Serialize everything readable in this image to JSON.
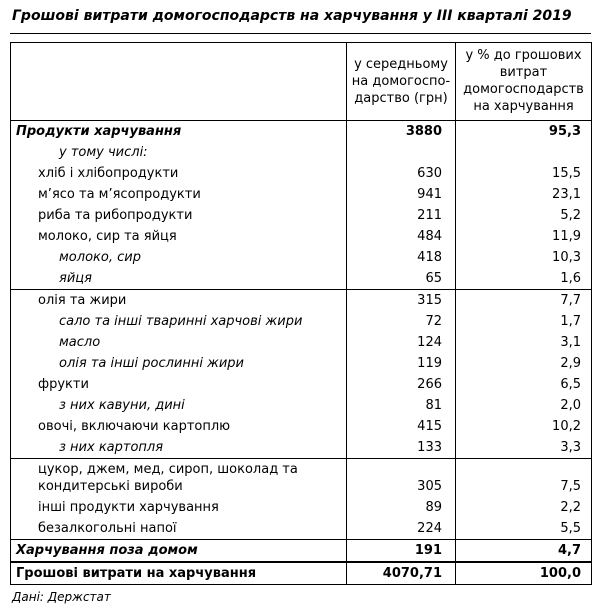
{
  "title": "Грошові витрати домогосподарств на харчування у III кварталі 2019",
  "source": "Дані: Держстат",
  "chart_data": {
    "type": "table",
    "title": "Грошові витрати домогосподарств на харчування у III кварталі 2019",
    "columns": {
      "col1": "",
      "col2": "у середньому\nна домогоспо-\nдарство (грн)",
      "col3": "у % до грошових\nвитрат\nдомогосподарств\nна харчування"
    },
    "rows": [
      {
        "label": "Продукти харчування",
        "avg_uah": "3880",
        "pct": "95,3"
      },
      {
        "label": "у тому числі:",
        "avg_uah": "",
        "pct": ""
      },
      {
        "label": "хліб і хлібопродукти",
        "avg_uah": "630",
        "pct": "15,5"
      },
      {
        "label": "м’ясо та м’ясопродукти",
        "avg_uah": "941",
        "pct": "23,1"
      },
      {
        "label": "риба та рибопродукти",
        "avg_uah": "211",
        "pct": "5,2"
      },
      {
        "label": "молоко, сир та яйця",
        "avg_uah": "484",
        "pct": "11,9"
      },
      {
        "label": "молоко, сир",
        "avg_uah": "418",
        "pct": "10,3"
      },
      {
        "label": "яйця",
        "avg_uah": "65",
        "pct": "1,6"
      },
      {
        "label": "олія та жири",
        "avg_uah": "315",
        "pct": "7,7"
      },
      {
        "label": "сало та інші тваринні харчові жири",
        "avg_uah": "72",
        "pct": "1,7"
      },
      {
        "label": "масло",
        "avg_uah": "124",
        "pct": "3,1"
      },
      {
        "label": "олія та інші рослинні жири",
        "avg_uah": "119",
        "pct": "2,9"
      },
      {
        "label": "фрукти",
        "avg_uah": "266",
        "pct": "6,5"
      },
      {
        "label": "з них кавуни, дині",
        "avg_uah": "81",
        "pct": "2,0"
      },
      {
        "label": "овочі, включаючи картоплю",
        "avg_uah": "415",
        "pct": "10,2"
      },
      {
        "label": "з них картопля",
        "avg_uah": "133",
        "pct": "3,3"
      },
      {
        "label": "цукор, джем, мед, сироп, шоколад та\nкондитерські вироби",
        "avg_uah": "305",
        "pct": "7,5"
      },
      {
        "label": "інші продукти харчування",
        "avg_uah": "89",
        "pct": "2,2"
      },
      {
        "label": "безалкогольні напої",
        "avg_uah": "224",
        "pct": "5,5"
      },
      {
        "label": "Харчування поза домом",
        "avg_uah": "191",
        "pct": "4,7"
      },
      {
        "label": "Грошові витрати на харчування",
        "avg_uah": "4070,71",
        "pct": "100,0"
      }
    ]
  }
}
